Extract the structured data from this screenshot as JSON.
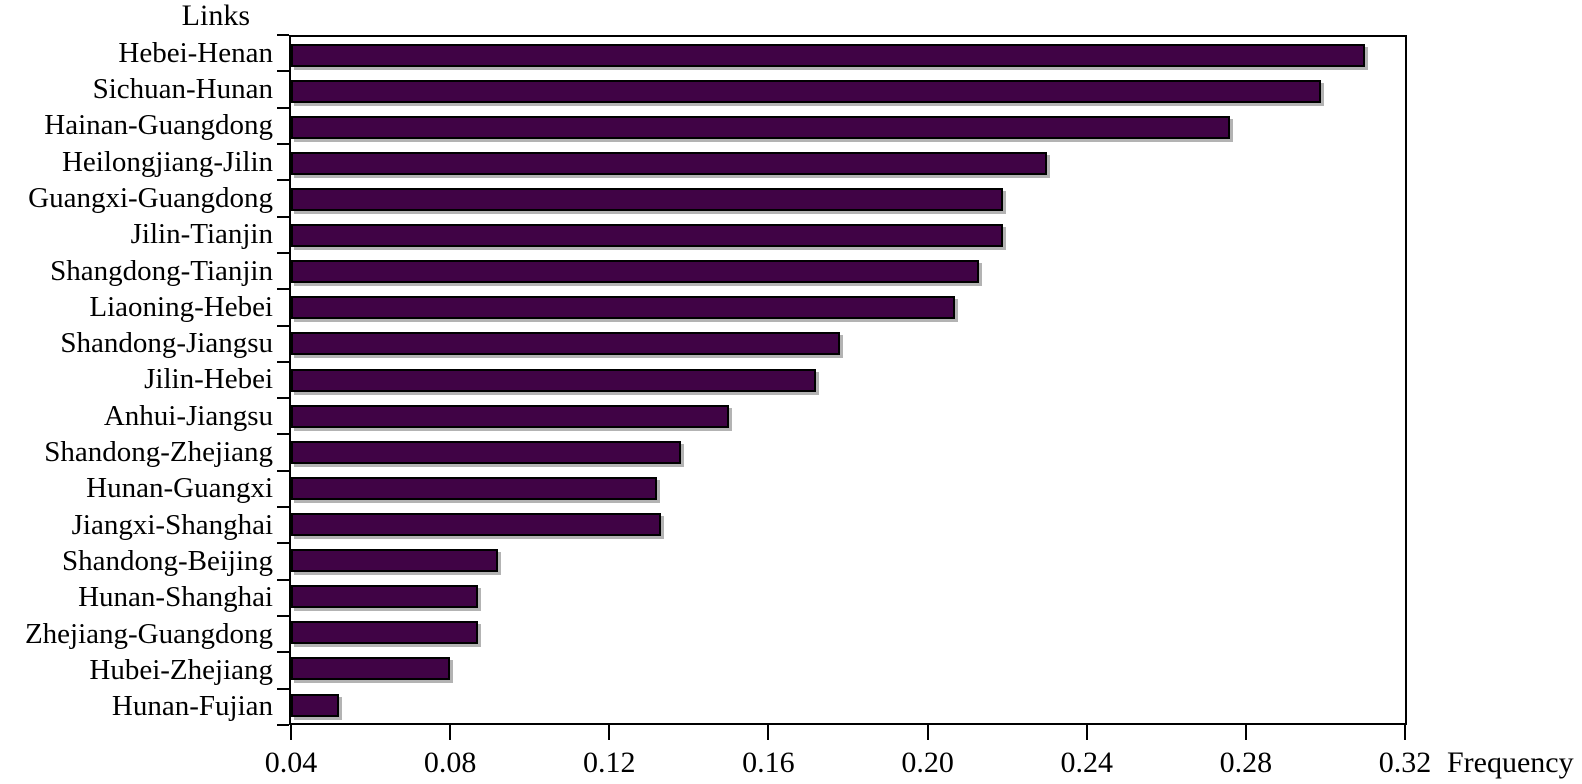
{
  "chart_data": {
    "type": "bar",
    "orientation": "horizontal",
    "title": "Links",
    "xlabel": "Frequency",
    "categories": [
      "Hebei-Henan",
      "Sichuan-Hunan",
      "Hainan-Guangdong",
      "Heilongjiang-Jilin",
      "Guangxi-Guangdong",
      "Jilin-Tianjin",
      "Shangdong-Tianjin",
      "Liaoning-Hebei",
      "Shandong-Jiangsu",
      "Jilin-Hebei",
      "Anhui-Jiangsu",
      "Shandong-Zhejiang",
      "Hunan-Guangxi",
      "Jiangxi-Shanghai",
      "Shandong-Beijing",
      "Hunan-Shanghai",
      "Zhejiang-Guangdong",
      "Hubei-Zhejiang",
      "Hunan-Fujian"
    ],
    "values": [
      0.31,
      0.299,
      0.276,
      0.23,
      0.219,
      0.219,
      0.213,
      0.207,
      0.178,
      0.172,
      0.15,
      0.138,
      0.132,
      0.133,
      0.092,
      0.087,
      0.087,
      0.08,
      0.052
    ],
    "xlim": [
      0.04,
      0.32
    ],
    "xtick_values": [
      0.04,
      0.08,
      0.12,
      0.16,
      0.2,
      0.24,
      0.28,
      0.32
    ],
    "xtick_labels": [
      "0.04",
      "0.08",
      "0.12",
      "0.16",
      "0.20",
      "0.24",
      "0.28",
      "0.32"
    ],
    "bar_color": "#400345",
    "bar_border_color": "#000000",
    "bar_shadow_color": "#b3b3b3",
    "axis_color": "#000000",
    "grid": false,
    "legend": false
  }
}
